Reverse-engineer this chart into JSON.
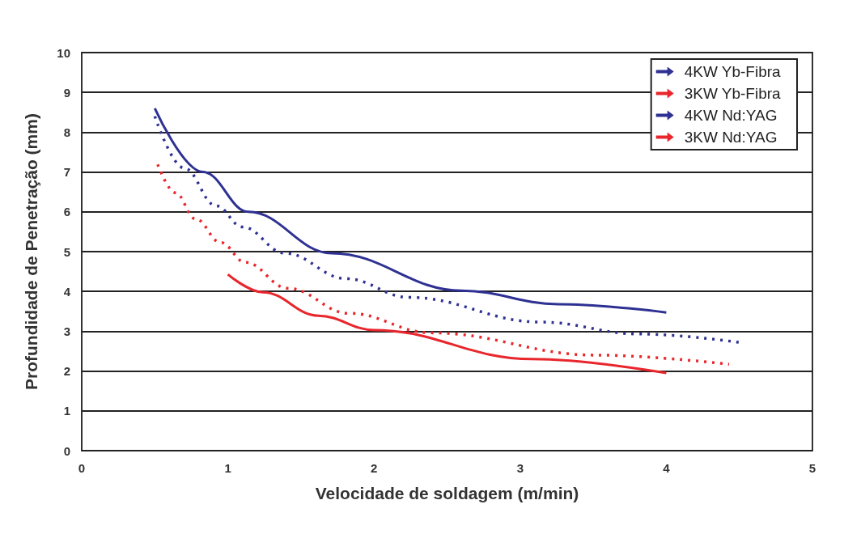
{
  "chart_data": {
    "type": "line",
    "xlabel": "Velocidade de soldagem (m/min)",
    "ylabel": "Profundidade de Penetração (mm)",
    "xlim": [
      0,
      5
    ],
    "xticks": [
      0,
      1,
      2,
      3,
      4,
      5
    ],
    "ylim": [
      0,
      10
    ],
    "yticks": [
      0,
      1,
      2,
      3,
      4,
      5,
      6,
      7,
      8,
      9,
      10
    ],
    "grid": "y",
    "legend": "top right",
    "marker": "none",
    "series": [
      {
        "name": "4KW Yb-Fibra",
        "color": "#2e3192",
        "line_style": "solid",
        "x": [
          0.5,
          0.83,
          1.14,
          1.71,
          2.6,
          3.26,
          4.0
        ],
        "values": [
          8.6,
          7.0,
          6.0,
          4.96,
          4.02,
          3.68,
          3.47
        ]
      },
      {
        "name": "3KW Yb-Fibra",
        "color": "#e8262c",
        "line_style": "solid",
        "x": [
          1.0,
          1.24,
          1.62,
          2.0,
          3.08,
          4.0
        ],
        "values": [
          4.43,
          3.98,
          3.39,
          3.03,
          2.3,
          1.95
        ]
      },
      {
        "name": "4KW Nd:YAG",
        "color": "#2e3192",
        "line_style": "dotted",
        "x": [
          0.5,
          0.7,
          0.92,
          1.1,
          1.39,
          1.81,
          2.24,
          3.14,
          3.82,
          4.5
        ],
        "values": [
          8.4,
          7.1,
          6.15,
          5.62,
          4.96,
          4.32,
          3.85,
          3.23,
          2.93,
          2.72
        ]
      },
      {
        "name": "3KW Nd:YAG",
        "color": "#e8262c",
        "line_style": "dotted",
        "x": [
          0.52,
          0.64,
          0.78,
          0.95,
          1.12,
          1.41,
          1.83,
          2.39,
          3.52,
          4.43
        ],
        "values": [
          7.19,
          6.48,
          5.82,
          5.23,
          4.73,
          4.08,
          3.45,
          2.96,
          2.4,
          2.17
        ]
      }
    ]
  }
}
